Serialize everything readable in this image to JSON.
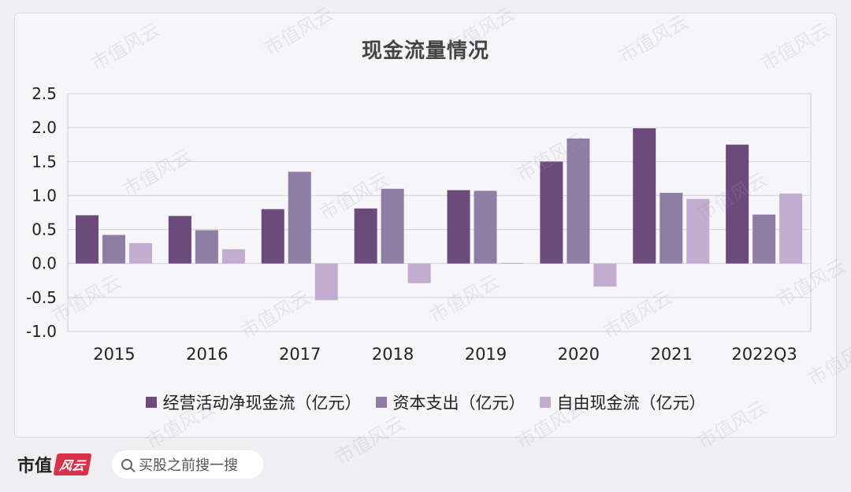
{
  "footer": {
    "brand": "市值",
    "brand_badge": "风云",
    "search_placeholder": "买股之前搜一搜"
  },
  "watermark_text": "市值风云",
  "colors": {
    "series1": "#6d4a7e",
    "series2": "#8f7ea3",
    "series3": "#c4abd0"
  },
  "chart_data": {
    "type": "bar",
    "title": "现金流量情况",
    "categories": [
      "2015",
      "2016",
      "2017",
      "2018",
      "2019",
      "2020",
      "2021",
      "2022Q3"
    ],
    "series": [
      {
        "name": "经营活动净现金流（亿元）",
        "values": [
          0.71,
          0.7,
          0.8,
          0.81,
          1.08,
          1.5,
          1.99,
          1.75
        ]
      },
      {
        "name": "资本支出（亿元）",
        "values": [
          0.42,
          0.49,
          1.35,
          1.1,
          1.07,
          1.84,
          1.04,
          0.72
        ]
      },
      {
        "name": "自由现金流（亿元）",
        "values": [
          0.3,
          0.21,
          -0.54,
          -0.29,
          0.01,
          -0.34,
          0.95,
          1.03
        ]
      }
    ],
    "yticks": [
      "2.5",
      "2.0",
      "1.5",
      "1.0",
      "0.5",
      "0.0",
      "-0.5",
      "-1.0"
    ],
    "ylim": [
      -1.0,
      2.5
    ],
    "xlabel": "",
    "ylabel": "",
    "grid": true,
    "legend_position": "bottom"
  }
}
